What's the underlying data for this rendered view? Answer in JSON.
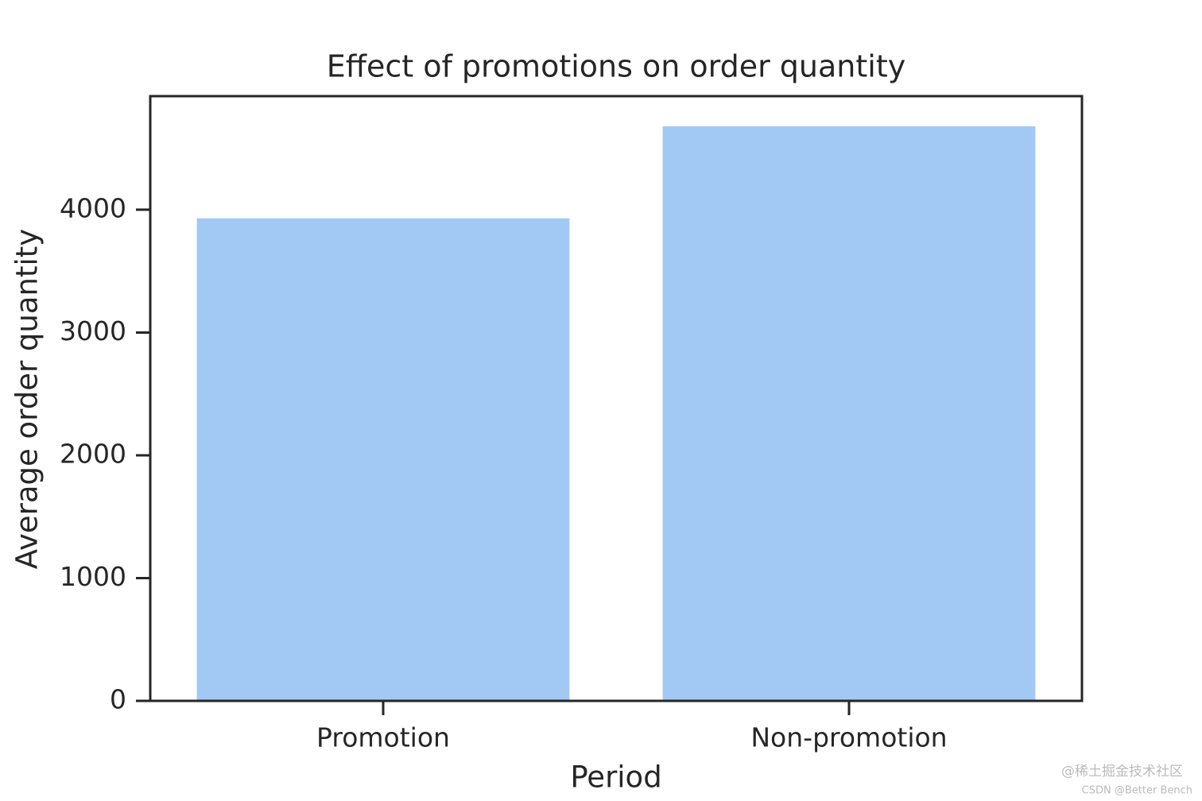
{
  "chart_data": {
    "type": "bar",
    "title": "Effect of promotions on order quantity",
    "x_label": "Period",
    "y_label": "Average order quantity",
    "categories": [
      "Promotion",
      "Non-promotion"
    ],
    "values": [
      3930,
      4680
    ],
    "color": "#a1c9f4",
    "ylim": [
      0,
      4925
    ],
    "yticks": [
      0,
      1000,
      2000,
      3000,
      4000
    ],
    "grid": false
  },
  "watermark": [
    "@稀土掘金技术社区",
    "CSDN @Better Bench"
  ]
}
